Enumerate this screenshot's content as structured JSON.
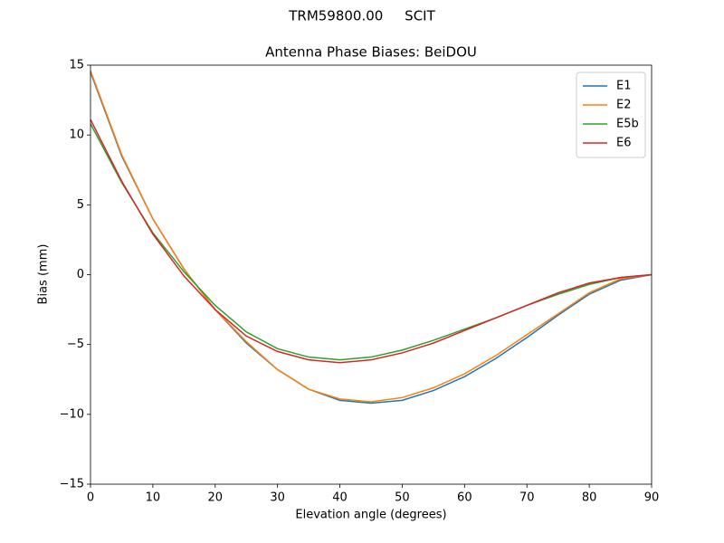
{
  "chart_data": {
    "type": "line",
    "suptitle": "TRM59800.00     SCIT",
    "title": "Antenna Phase Biases: BeiDOU",
    "xlabel": "Elevation angle (degrees)",
    "ylabel": "Bias (mm)",
    "x": [
      0,
      5,
      10,
      15,
      20,
      25,
      30,
      35,
      40,
      45,
      50,
      55,
      60,
      65,
      70,
      75,
      80,
      85,
      90
    ],
    "series": [
      {
        "name": "E1",
        "color": "#1f77b4",
        "values": [
          14.5,
          8.5,
          4.0,
          0.4,
          -2.5,
          -4.9,
          -6.8,
          -8.2,
          -9.0,
          -9.2,
          -9.0,
          -8.3,
          -7.3,
          -6.0,
          -4.5,
          -2.9,
          -1.4,
          -0.4,
          0
        ]
      },
      {
        "name": "E2",
        "color": "#ff7f0e",
        "values": [
          14.6,
          8.6,
          4.0,
          0.4,
          -2.5,
          -4.8,
          -6.8,
          -8.2,
          -8.9,
          -9.1,
          -8.8,
          -8.1,
          -7.1,
          -5.8,
          -4.3,
          -2.8,
          -1.3,
          -0.3,
          0
        ]
      },
      {
        "name": "E5b",
        "color": "#2ca02c",
        "values": [
          10.8,
          6.6,
          3.0,
          0.2,
          -2.2,
          -4.1,
          -5.3,
          -5.9,
          -6.1,
          -5.9,
          -5.4,
          -4.7,
          -3.9,
          -3.1,
          -2.2,
          -1.4,
          -0.7,
          -0.2,
          0
        ]
      },
      {
        "name": "E6",
        "color": "#d62728",
        "values": [
          11.1,
          6.7,
          2.9,
          -0.1,
          -2.5,
          -4.4,
          -5.5,
          -6.1,
          -6.3,
          -6.1,
          -5.6,
          -4.9,
          -4.0,
          -3.1,
          -2.2,
          -1.3,
          -0.6,
          -0.2,
          0
        ]
      }
    ],
    "xlim": [
      0,
      90
    ],
    "xticks": [
      0,
      10,
      20,
      30,
      40,
      50,
      60,
      70,
      80,
      90
    ],
    "ylim": [
      -15,
      15
    ],
    "yticks": [
      {
        "value": -15,
        "label": "−15"
      },
      {
        "value": -10,
        "label": "−10"
      },
      {
        "value": -5,
        "label": "−5"
      },
      0,
      5,
      10,
      15
    ],
    "legend": "upper right",
    "grid": false
  }
}
